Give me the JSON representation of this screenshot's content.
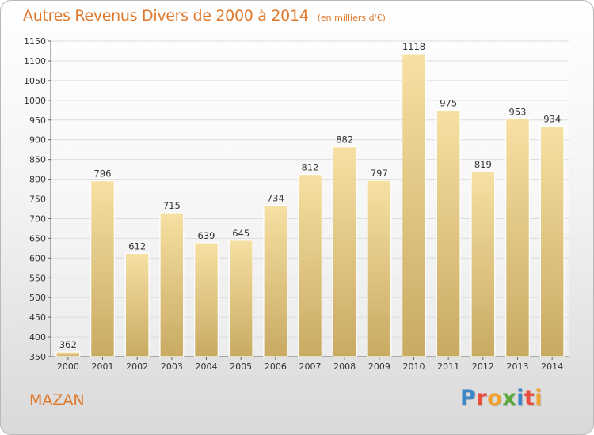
{
  "header": {
    "title": "Autres Revenus Divers de 2000 à 2014",
    "unit_note": "(en milliers d'€)"
  },
  "footer": {
    "commune": "MAZAN",
    "brand": "Proxiti"
  },
  "colors": {
    "title": "#e0792b",
    "bar_top": "#f7e0a3",
    "bar_bottom": "#c8aa62",
    "grid": "#dcdcdc"
  },
  "chart_data": {
    "type": "bar",
    "categories": [
      "2000",
      "2001",
      "2002",
      "2003",
      "2004",
      "2005",
      "2006",
      "2007",
      "2008",
      "2009",
      "2010",
      "2011",
      "2012",
      "2013",
      "2014"
    ],
    "values": [
      362,
      796,
      612,
      715,
      639,
      645,
      734,
      812,
      882,
      797,
      1118,
      975,
      819,
      953,
      934
    ],
    "ylim": [
      350,
      1150
    ],
    "yticks": [
      350,
      400,
      450,
      500,
      550,
      600,
      650,
      700,
      750,
      800,
      850,
      900,
      950,
      1000,
      1050,
      1100,
      1150
    ],
    "grid": true,
    "legend": "none"
  }
}
